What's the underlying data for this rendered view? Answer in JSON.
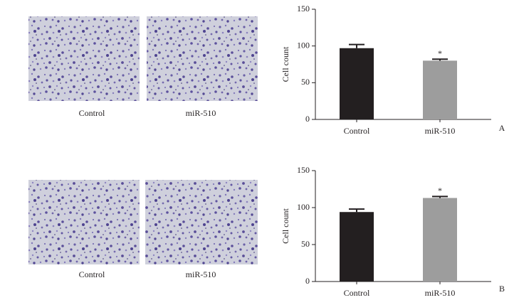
{
  "chart_data": [
    {
      "type": "bar",
      "panel_label": "A",
      "image_captions": [
        "Control",
        "miR-510"
      ],
      "ylabel": "Cell count",
      "categories": [
        "Control",
        "miR-510"
      ],
      "values": [
        97,
        80
      ],
      "errors": [
        5,
        2
      ],
      "significance": [
        null,
        "*"
      ],
      "colors": [
        "#231f20",
        "#9d9d9d"
      ],
      "ylim": [
        0,
        150
      ],
      "yticks": [
        0,
        50,
        100,
        150
      ]
    },
    {
      "type": "bar",
      "panel_label": "B",
      "image_captions": [
        "Control",
        "miR-510"
      ],
      "ylabel": "Cell count",
      "categories": [
        "Control",
        "miR-510"
      ],
      "values": [
        94,
        113
      ],
      "errors": [
        4,
        2
      ],
      "significance": [
        null,
        "*"
      ],
      "colors": [
        "#231f20",
        "#9d9d9d"
      ],
      "ylim": [
        0,
        150
      ],
      "yticks": [
        0,
        50,
        100,
        150
      ]
    }
  ]
}
